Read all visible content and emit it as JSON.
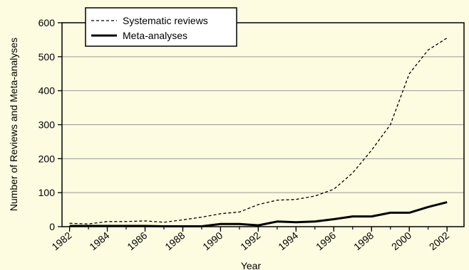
{
  "chart_data": {
    "type": "line",
    "xlabel": "Year",
    "ylabel": "Number of Reviews and Meta-analyses",
    "xlim": [
      1981.6,
      2002.9
    ],
    "ylim": [
      0,
      600
    ],
    "x_ticks": [
      "1982",
      "1984",
      "1986",
      "1988",
      "1990",
      "1992",
      "1994",
      "1996",
      "1998",
      "2000",
      "2002"
    ],
    "y_ticks": [
      "0",
      "100",
      "200",
      "300",
      "400",
      "500",
      "600"
    ],
    "grid": "horizontal",
    "legend_position": "top-left",
    "x": [
      1982,
      1983,
      1984,
      1985,
      1986,
      1987,
      1988,
      1989,
      1990,
      1991,
      1992,
      1993,
      1994,
      1995,
      1996,
      1997,
      1998,
      1999,
      2000,
      2001,
      2002
    ],
    "series": [
      {
        "name": "Systematic reviews",
        "style": "dashed",
        "values": [
          10,
          8,
          15,
          15,
          17,
          13,
          20,
          28,
          38,
          43,
          65,
          78,
          80,
          90,
          110,
          158,
          225,
          300,
          450,
          520,
          555
        ]
      },
      {
        "name": "Meta-analyses",
        "style": "solid",
        "values": [
          2,
          2,
          2,
          2,
          2,
          1,
          1,
          1,
          8,
          8,
          4,
          15,
          13,
          15,
          22,
          30,
          30,
          41,
          41,
          58,
          72
        ]
      }
    ]
  }
}
